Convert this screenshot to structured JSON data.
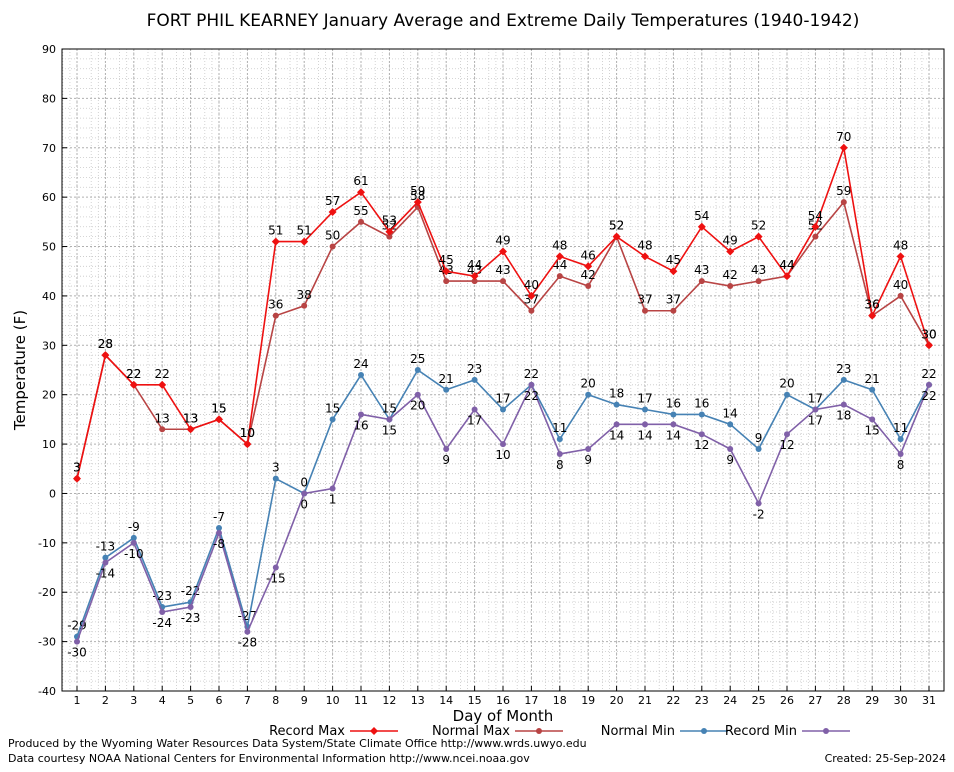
{
  "chart_data": {
    "type": "line",
    "title": "FORT PHIL KEARNEY January Average and Extreme Daily Temperatures (1940-1942)",
    "xlabel": "Day of Month",
    "ylabel": "Temperature (F)",
    "ylim": [
      -40,
      90
    ],
    "yticks": [
      -40,
      -30,
      -20,
      -10,
      0,
      10,
      20,
      30,
      40,
      50,
      60,
      70,
      80,
      90
    ],
    "x": [
      1,
      2,
      3,
      4,
      5,
      6,
      7,
      8,
      9,
      10,
      11,
      12,
      13,
      14,
      15,
      16,
      17,
      18,
      19,
      20,
      21,
      22,
      23,
      24,
      25,
      26,
      27,
      28,
      29,
      30,
      31
    ],
    "grid": true,
    "legend_position": "bottom",
    "series": [
      {
        "name": "Record Max",
        "color": "#ee1111",
        "values": [
          3,
          28,
          22,
          22,
          13,
          15,
          10,
          51,
          51,
          57,
          61,
          53,
          59,
          45,
          44,
          49,
          40,
          48,
          46,
          52,
          48,
          45,
          54,
          49,
          52,
          44,
          54,
          70,
          36,
          48,
          30
        ]
      },
      {
        "name": "Normal Max",
        "color": "#b84444",
        "values": [
          3,
          28,
          22,
          13,
          13,
          15,
          10,
          36,
          38,
          50,
          55,
          52,
          58,
          43,
          43,
          43,
          37,
          44,
          42,
          52,
          37,
          37,
          43,
          42,
          43,
          44,
          52,
          59,
          36,
          40,
          30
        ]
      },
      {
        "name": "Normal Min",
        "color": "#4682b4",
        "values": [
          -29,
          -13,
          -9,
          -23,
          -22,
          -7,
          -27,
          3,
          0,
          15,
          24,
          15,
          25,
          21,
          23,
          17,
          22,
          11,
          20,
          18,
          17,
          16,
          16,
          14,
          9,
          20,
          17,
          23,
          21,
          11,
          22
        ]
      },
      {
        "name": "Record Min",
        "color": "#8060a8",
        "values": [
          -30,
          -14,
          -10,
          -24,
          -23,
          -8,
          -28,
          -15,
          0,
          1,
          16,
          15,
          20,
          9,
          17,
          10,
          22,
          8,
          9,
          14,
          14,
          14,
          12,
          9,
          -2,
          12,
          17,
          18,
          15,
          8,
          22
        ]
      }
    ]
  },
  "footer": {
    "credit_line1": "Produced by the Wyoming Water Resources Data System/State Climate Office http://www.wrds.uwyo.edu",
    "credit_line2": "Data courtesy NOAA National Centers for Environmental Information http://www.ncei.noaa.gov",
    "created": "Created:  25-Sep-2024"
  }
}
